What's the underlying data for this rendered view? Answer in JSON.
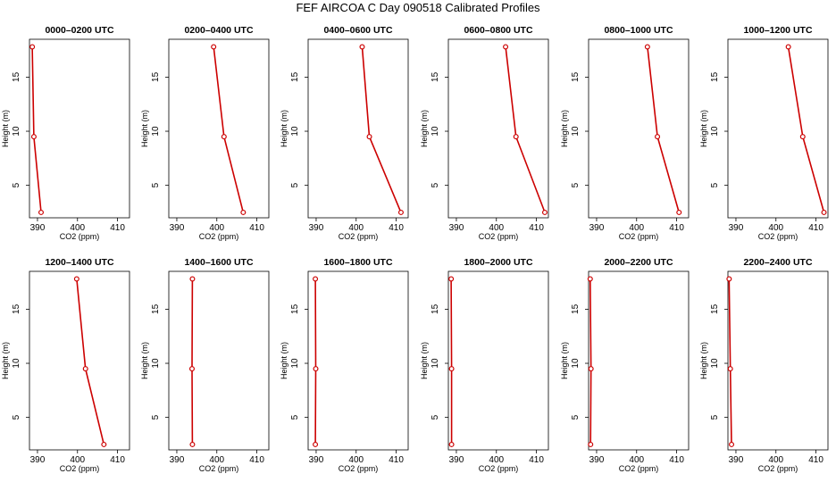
{
  "title": "FEF AIRCOA C  Day 090518  Calibrated Profiles",
  "chart_data": {
    "type": "line",
    "xlabel": "CO2 (ppm)",
    "ylabel": "Height (m)",
    "xlim": [
      388,
      413
    ],
    "ylim": [
      2,
      18.5
    ],
    "xticks": [
      390,
      400,
      410
    ],
    "yticks": [
      5,
      10,
      15
    ],
    "line_color": "#cc0000",
    "panels": [
      {
        "title": "0000–0200 UTC",
        "points": [
          {
            "height": 17.8,
            "co2": 388.7
          },
          {
            "height": 9.5,
            "co2": 389.1
          },
          {
            "height": 2.5,
            "co2": 390.9
          }
        ]
      },
      {
        "title": "0200–0400 UTC",
        "points": [
          {
            "height": 17.8,
            "co2": 399.2
          },
          {
            "height": 9.5,
            "co2": 401.8
          },
          {
            "height": 2.5,
            "co2": 406.6
          }
        ]
      },
      {
        "title": "0400–0600 UTC",
        "points": [
          {
            "height": 17.8,
            "co2": 401.5
          },
          {
            "height": 9.5,
            "co2": 403.3
          },
          {
            "height": 2.5,
            "co2": 411.2
          }
        ]
      },
      {
        "title": "0600–0800 UTC",
        "points": [
          {
            "height": 17.8,
            "co2": 402.3
          },
          {
            "height": 9.5,
            "co2": 404.9
          },
          {
            "height": 2.5,
            "co2": 412.1
          }
        ]
      },
      {
        "title": "0800–1000 UTC",
        "points": [
          {
            "height": 17.8,
            "co2": 402.7
          },
          {
            "height": 9.5,
            "co2": 405.2
          },
          {
            "height": 2.5,
            "co2": 410.6
          }
        ]
      },
      {
        "title": "1000–1200 UTC",
        "points": [
          {
            "height": 17.8,
            "co2": 403.1
          },
          {
            "height": 9.5,
            "co2": 406.7
          },
          {
            "height": 2.5,
            "co2": 412.0
          }
        ]
      },
      {
        "title": "1200–1400 UTC",
        "points": [
          {
            "height": 17.8,
            "co2": 399.8
          },
          {
            "height": 9.5,
            "co2": 402.0
          },
          {
            "height": 2.5,
            "co2": 406.6
          }
        ]
      },
      {
        "title": "1400–1600 UTC",
        "points": [
          {
            "height": 17.8,
            "co2": 393.9
          },
          {
            "height": 9.5,
            "co2": 393.8
          },
          {
            "height": 2.5,
            "co2": 393.9
          }
        ]
      },
      {
        "title": "1600–1800 UTC",
        "points": [
          {
            "height": 17.8,
            "co2": 389.8
          },
          {
            "height": 9.5,
            "co2": 389.9
          },
          {
            "height": 2.5,
            "co2": 389.8
          }
        ]
      },
      {
        "title": "1800–2000 UTC",
        "points": [
          {
            "height": 17.8,
            "co2": 388.7
          },
          {
            "height": 9.5,
            "co2": 388.8
          },
          {
            "height": 2.5,
            "co2": 388.8
          }
        ]
      },
      {
        "title": "2000–2200 UTC",
        "points": [
          {
            "height": 17.8,
            "co2": 388.4
          },
          {
            "height": 9.5,
            "co2": 388.6
          },
          {
            "height": 2.5,
            "co2": 388.5
          }
        ]
      },
      {
        "title": "2200–2400 UTC",
        "points": [
          {
            "height": 17.8,
            "co2": 388.3
          },
          {
            "height": 9.5,
            "co2": 388.6
          },
          {
            "height": 2.5,
            "co2": 388.9
          }
        ]
      }
    ]
  }
}
